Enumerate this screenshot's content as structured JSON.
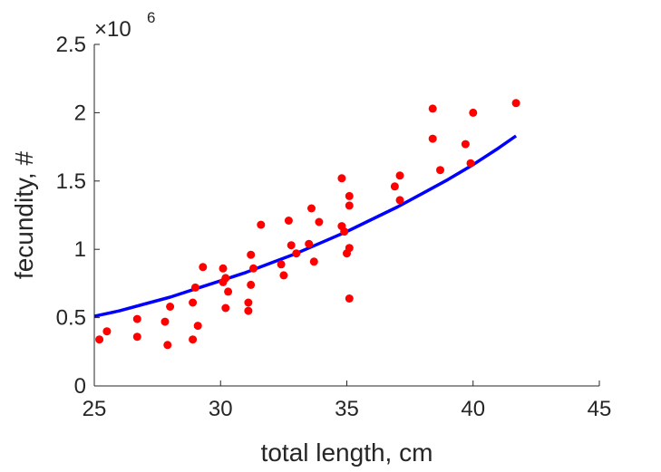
{
  "chart_data": {
    "type": "scatter",
    "xlabel": "total length, cm",
    "ylabel": "fecundity, #",
    "xlim": [
      25,
      45
    ],
    "ylim": [
      0,
      2.5
    ],
    "xticks": [
      "25",
      "30",
      "35",
      "40",
      "45"
    ],
    "yticks": [
      "0",
      "0.5",
      "1",
      "1.5",
      "2",
      "2.5"
    ],
    "y_exponent": {
      "base": "×10",
      "power": "6"
    },
    "grid": false,
    "colors": {
      "points": "#ff0000",
      "fit": "#0000ff",
      "axis": "#262626"
    },
    "points": [
      [
        25.2,
        0.34
      ],
      [
        25.5,
        0.4
      ],
      [
        26.7,
        0.49
      ],
      [
        26.7,
        0.36
      ],
      [
        27.8,
        0.47
      ],
      [
        27.9,
        0.3
      ],
      [
        28.0,
        0.58
      ],
      [
        28.9,
        0.61
      ],
      [
        29.0,
        0.72
      ],
      [
        28.9,
        0.34
      ],
      [
        29.1,
        0.44
      ],
      [
        29.3,
        0.87
      ],
      [
        30.1,
        0.86
      ],
      [
        30.1,
        0.76
      ],
      [
        30.2,
        0.79
      ],
      [
        30.2,
        0.57
      ],
      [
        30.3,
        0.69
      ],
      [
        31.1,
        0.61
      ],
      [
        31.1,
        0.55
      ],
      [
        31.2,
        0.74
      ],
      [
        31.2,
        0.96
      ],
      [
        31.3,
        0.86
      ],
      [
        31.6,
        1.18
      ],
      [
        32.4,
        0.89
      ],
      [
        32.5,
        0.81
      ],
      [
        32.7,
        1.21
      ],
      [
        32.8,
        1.03
      ],
      [
        33.0,
        0.97
      ],
      [
        33.5,
        1.04
      ],
      [
        33.6,
        1.3
      ],
      [
        33.7,
        0.91
      ],
      [
        33.9,
        1.2
      ],
      [
        34.8,
        1.52
      ],
      [
        34.8,
        1.17
      ],
      [
        34.9,
        1.13
      ],
      [
        35.0,
        0.97
      ],
      [
        35.1,
        1.39
      ],
      [
        35.1,
        1.32
      ],
      [
        35.1,
        1.01
      ],
      [
        35.1,
        0.64
      ],
      [
        36.9,
        1.46
      ],
      [
        37.1,
        1.54
      ],
      [
        37.1,
        1.36
      ],
      [
        38.4,
        2.03
      ],
      [
        38.4,
        1.81
      ],
      [
        38.7,
        1.58
      ],
      [
        39.7,
        1.77
      ],
      [
        39.9,
        1.63
      ],
      [
        40.0,
        2.0
      ],
      [
        41.7,
        2.07
      ]
    ],
    "fit_line": {
      "x": [
        25,
        26,
        27,
        28,
        29,
        30,
        31,
        32,
        33,
        34,
        35,
        36,
        37,
        38,
        39,
        40,
        41,
        41.7
      ],
      "y": [
        0.51,
        0.55,
        0.6,
        0.65,
        0.71,
        0.77,
        0.83,
        0.9,
        0.97,
        1.05,
        1.13,
        1.22,
        1.31,
        1.41,
        1.51,
        1.62,
        1.74,
        1.83
      ]
    }
  }
}
